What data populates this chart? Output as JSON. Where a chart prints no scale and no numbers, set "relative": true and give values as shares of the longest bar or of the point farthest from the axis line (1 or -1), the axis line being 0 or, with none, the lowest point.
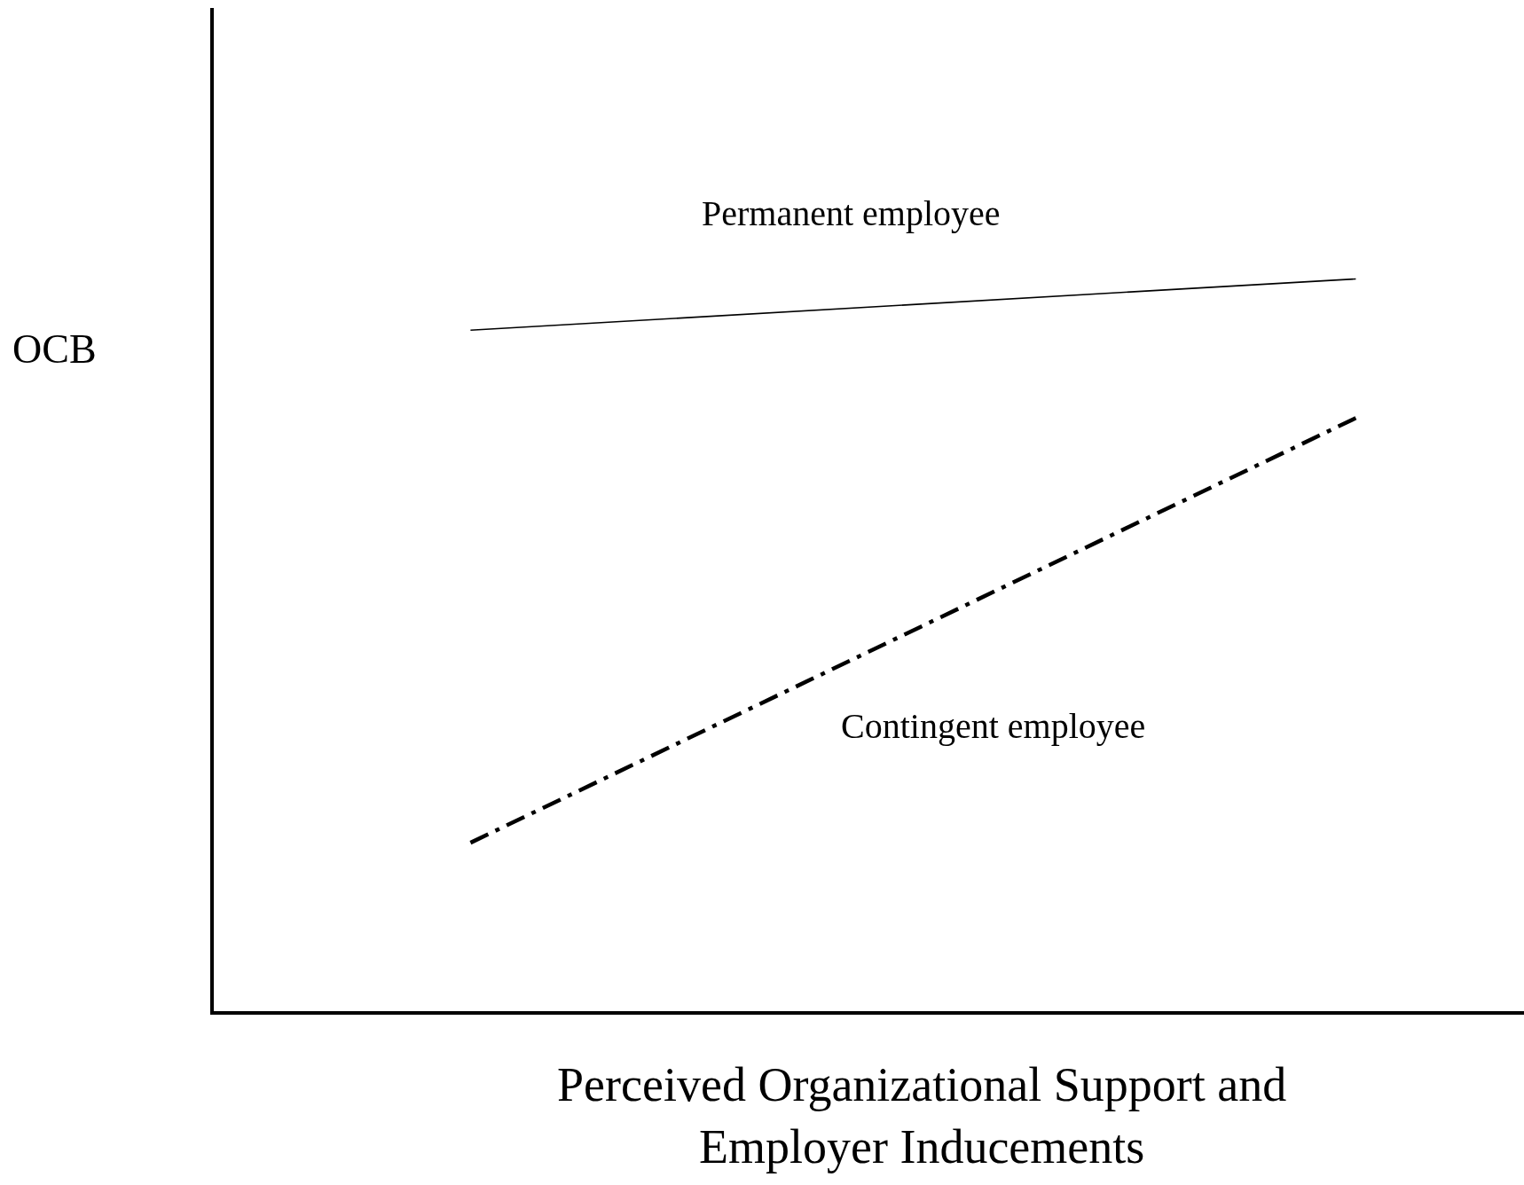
{
  "chart_data": {
    "type": "line",
    "relative": true,
    "xlabel": "Perceived Organizational Support and\nEmployer Inducements",
    "ylabel": "OCB",
    "categories": [
      null,
      null
    ],
    "legend": false,
    "marker": "none",
    "series": [
      {
        "name": "Permanent employee",
        "color": "#000000",
        "values": [
          0.93,
          1
        ],
        "line_style": "solid"
      },
      {
        "name": "Contingent employee",
        "color": "#000000",
        "values": [
          0.23,
          0.81
        ],
        "line_style": "dashdot"
      }
    ]
  }
}
